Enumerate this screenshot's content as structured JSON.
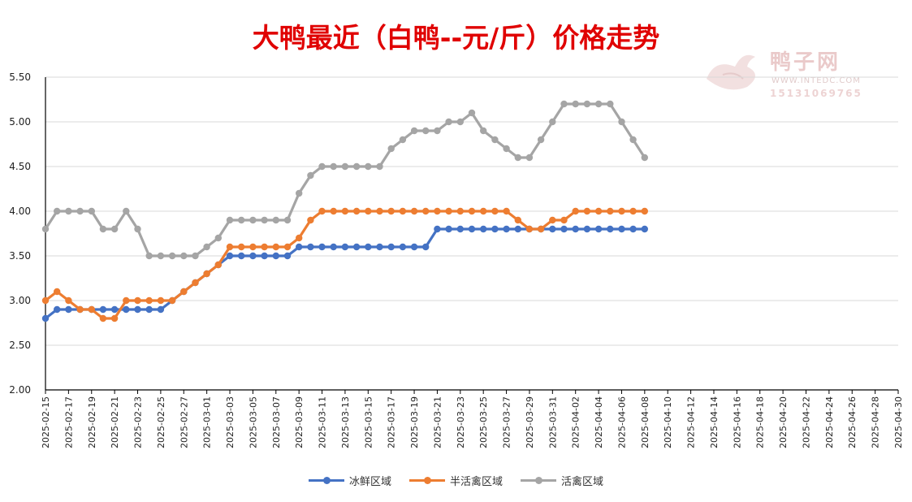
{
  "chart_data": {
    "type": "line",
    "title": "大鸭最近（白鸭--元/斤）价格走势",
    "xlabel": "",
    "ylabel": "",
    "ylim": [
      2.0,
      5.5
    ],
    "yticks": [
      "2.00",
      "2.50",
      "3.00",
      "3.50",
      "4.00",
      "4.50",
      "5.00",
      "5.50"
    ],
    "xtick_labels": [
      "2025-02-15",
      "2025-02-17",
      "2025-02-19",
      "2025-02-21",
      "2025-02-23",
      "2025-02-25",
      "2025-02-27",
      "2025-03-01",
      "2025-03-03",
      "2025-03-05",
      "2025-03-07",
      "2025-03-09",
      "2025-03-11",
      "2025-03-13",
      "2025-03-15",
      "2025-03-17",
      "2025-03-19",
      "2025-03-21",
      "2025-03-23",
      "2025-03-25",
      "2025-03-27",
      "2025-03-29",
      "2025-03-31",
      "2025-04-02",
      "2025-04-04",
      "2025-04-06",
      "2025-04-08",
      "2025-04-10",
      "2025-04-12",
      "2025-04-14",
      "2025-04-16",
      "2025-04-18",
      "2025-04-20",
      "2025-04-22",
      "2025-04-24",
      "2025-04-26",
      "2025-04-28",
      "2025-04-30"
    ],
    "x_start": "2025-02-15",
    "x_end": "2025-04-30",
    "series_dates_from": "2025-02-15",
    "series": [
      {
        "name": "冰鲜区域",
        "color": "#4472c4",
        "values": [
          2.8,
          2.9,
          2.9,
          2.9,
          2.9,
          2.9,
          2.9,
          2.9,
          2.9,
          2.9,
          2.9,
          3.0,
          3.1,
          3.2,
          3.3,
          3.4,
          3.5,
          3.5,
          3.5,
          3.5,
          3.5,
          3.5,
          3.6,
          3.6,
          3.6,
          3.6,
          3.6,
          3.6,
          3.6,
          3.6,
          3.6,
          3.6,
          3.6,
          3.6,
          3.8,
          3.8,
          3.8,
          3.8,
          3.8,
          3.8,
          3.8,
          3.8,
          3.8,
          3.8,
          3.8,
          3.8,
          3.8,
          3.8,
          3.8,
          3.8,
          3.8,
          3.8,
          3.8
        ]
      },
      {
        "name": "半活禽区域",
        "color": "#ed7d31",
        "values": [
          3.0,
          3.1,
          3.0,
          2.9,
          2.9,
          2.8,
          2.8,
          3.0,
          3.0,
          3.0,
          3.0,
          3.0,
          3.1,
          3.2,
          3.3,
          3.4,
          3.6,
          3.6,
          3.6,
          3.6,
          3.6,
          3.6,
          3.7,
          3.9,
          4.0,
          4.0,
          4.0,
          4.0,
          4.0,
          4.0,
          4.0,
          4.0,
          4.0,
          4.0,
          4.0,
          4.0,
          4.0,
          4.0,
          4.0,
          4.0,
          4.0,
          3.9,
          3.8,
          3.8,
          3.9,
          3.9,
          4.0,
          4.0,
          4.0,
          4.0,
          4.0,
          4.0,
          4.0
        ]
      },
      {
        "name": "活禽区域",
        "color": "#a5a5a5",
        "values": [
          3.8,
          4.0,
          4.0,
          4.0,
          4.0,
          3.8,
          3.8,
          4.0,
          3.8,
          3.5,
          3.5,
          3.5,
          3.5,
          3.5,
          3.6,
          3.7,
          3.9,
          3.9,
          3.9,
          3.9,
          3.9,
          3.9,
          4.2,
          4.4,
          4.5,
          4.5,
          4.5,
          4.5,
          4.5,
          4.5,
          4.7,
          4.8,
          4.9,
          4.9,
          4.9,
          5.0,
          5.0,
          5.1,
          4.9,
          4.8,
          4.7,
          4.6,
          4.6,
          4.8,
          5.0,
          5.2,
          5.2,
          5.2,
          5.2,
          5.2,
          5.0,
          4.8,
          4.6
        ]
      }
    ],
    "grid": true,
    "legend_position": "bottom"
  },
  "watermark": {
    "name": "鸭子网",
    "url": "WWW.INTEDC.COM",
    "phone": "15131069765"
  }
}
